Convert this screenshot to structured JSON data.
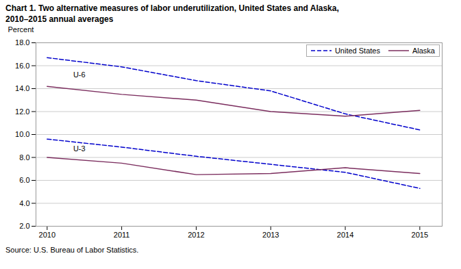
{
  "chart_data": {
    "type": "line",
    "title": "Chart 1. Two alternative measures of labor underutilization, United States and Alaska,",
    "subtitle": "2010–2015 annual averages",
    "caption": "Source: U.S. Bureau of Labor Statistics.",
    "ylabel": "Percent",
    "x": [
      2010,
      2011,
      2012,
      2013,
      2014,
      2015
    ],
    "xlim": [
      2009.85,
      2015.3
    ],
    "xticks": [
      2010,
      2011,
      2012,
      2013,
      2014,
      2015
    ],
    "ylim": [
      2.0,
      18.0
    ],
    "yticks": [
      {
        "value": 2.0,
        "label": "2.0"
      },
      {
        "value": 4.0,
        "label": "4.0"
      },
      {
        "value": 6.0,
        "label": "6.0"
      },
      {
        "value": 8.0,
        "label": "8.0"
      },
      {
        "value": 10.0,
        "label": "10.0"
      },
      {
        "value": 12.0,
        "label": "12.0"
      },
      {
        "value": 14.0,
        "label": "14.0"
      },
      {
        "value": 16.0,
        "label": "16.0"
      },
      {
        "value": 18.0,
        "label": "18.0"
      }
    ],
    "grid": true,
    "legend": "upper right",
    "series": [
      {
        "name": "United States",
        "color": "#0000CC",
        "line_style": "dashed",
        "values": [
          16.7,
          15.9,
          14.7,
          13.8,
          11.8,
          10.4
        ]
      },
      {
        "name": "Alaska",
        "color": "#7B2D5E",
        "line_style": "solid",
        "values": [
          14.2,
          13.5,
          13.0,
          12.0,
          11.6,
          12.1
        ]
      },
      {
        "name": "United States",
        "color": "#0000CC",
        "line_style": "dashed",
        "values": [
          9.6,
          8.9,
          8.1,
          7.4,
          6.7,
          5.3
        ]
      },
      {
        "name": "Alaska",
        "color": "#7B2D5E",
        "line_style": "solid",
        "values": [
          8.0,
          7.5,
          6.5,
          6.6,
          7.1,
          6.6
        ]
      }
    ],
    "annotations": [
      {
        "text": "U-6",
        "x": 2010.35,
        "y": 15.0
      },
      {
        "text": "U-3",
        "x": 2010.35,
        "y": 8.55
      }
    ]
  }
}
